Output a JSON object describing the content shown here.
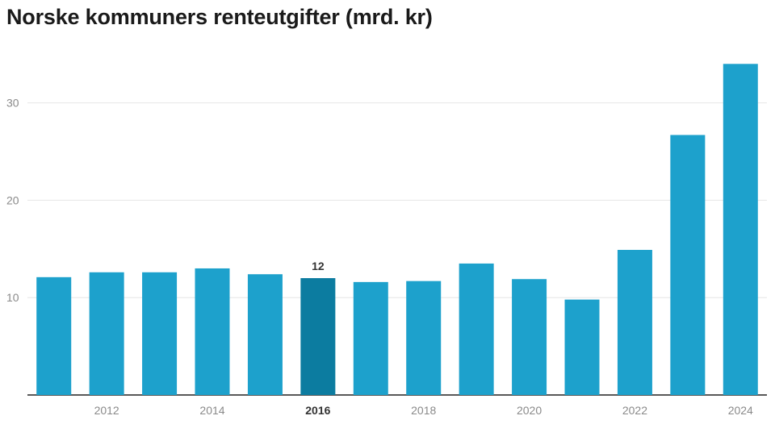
{
  "title": "Norske kommuners renteutgifter (mrd. kr)",
  "colors": {
    "bar": "#1da1cc",
    "bar_highlight": "#0c7ca0",
    "grid": "#e6e6e6",
    "axis": "#222222"
  },
  "chart_data": {
    "type": "bar",
    "title": "Norske kommuners renteutgifter (mrd. kr)",
    "xlabel": "",
    "ylabel": "",
    "categories": [
      "2011",
      "2012",
      "2013",
      "2014",
      "2015",
      "2016",
      "2017",
      "2018",
      "2019",
      "2020",
      "2021",
      "2022",
      "2023",
      "2024"
    ],
    "x_tick_labels": [
      "2012",
      "2014",
      "2016",
      "2018",
      "2020",
      "2022",
      "2024"
    ],
    "values": [
      12.1,
      12.6,
      12.6,
      13.0,
      12.4,
      12.0,
      11.6,
      11.7,
      13.5,
      11.9,
      9.8,
      14.9,
      26.7,
      34.0
    ],
    "y_ticks": [
      "10",
      "20",
      "30"
    ],
    "ylim": [
      0,
      36
    ],
    "grid": true,
    "legend": "none",
    "highlight": {
      "category": "2016",
      "label": "12"
    }
  }
}
